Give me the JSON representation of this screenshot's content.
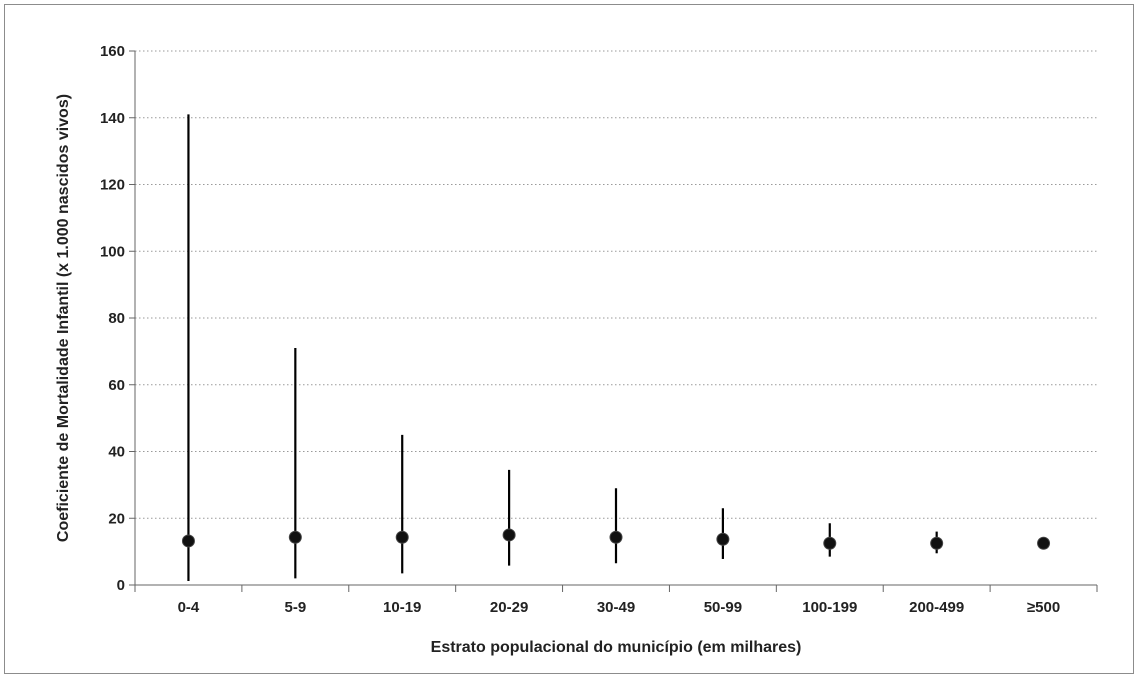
{
  "chart_data": {
    "type": "errorbar",
    "xlabel": "Estrato populacional do município (em milhares)",
    "ylabel": "Coeficiente de Mortalidade Infantil (x 1.000 nascidos vivos)",
    "categories": [
      "0-4",
      "5-9",
      "10-19",
      "20-29",
      "30-49",
      "50-99",
      "100-199",
      "200-499",
      "≥500"
    ],
    "values": [
      13.2,
      14.3,
      14.3,
      15.0,
      14.3,
      13.7,
      12.5,
      12.5,
      12.5
    ],
    "lower": [
      1.2,
      2.0,
      3.5,
      5.8,
      6.5,
      7.8,
      8.5,
      9.5,
      11.5
    ],
    "upper": [
      141,
      71,
      45,
      34.5,
      29,
      23,
      18.5,
      16,
      13.8
    ],
    "ylim": [
      0,
      160
    ],
    "yticks": [
      0,
      20,
      40,
      60,
      80,
      100,
      120,
      140,
      160
    ],
    "grid": true,
    "colors": {
      "marker": "#111111",
      "bar": "#000000",
      "grid": "#9a9a9a",
      "axis": "#666666"
    }
  }
}
